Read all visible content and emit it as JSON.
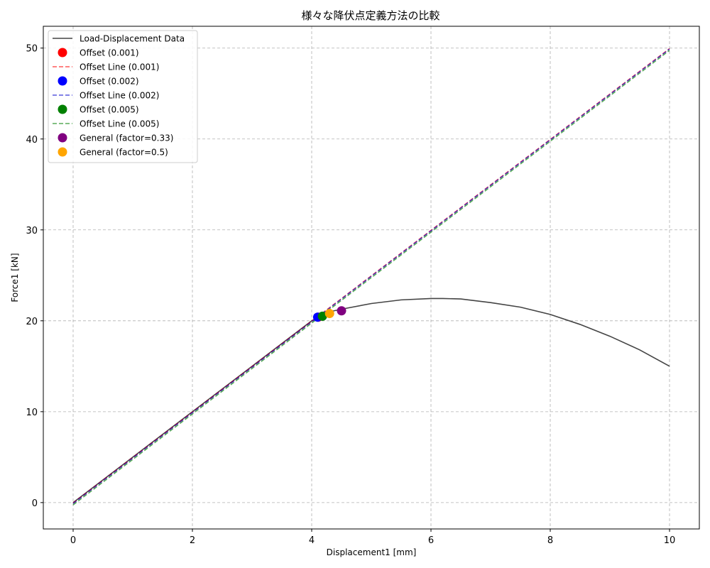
{
  "chart_data": {
    "type": "line",
    "title": "様々な降伏点定義方法の比較",
    "xlabel": "Displacement1 [mm]",
    "ylabel": "Force1 [kN]",
    "xlim": [
      -0.5,
      10.5
    ],
    "ylim": [
      -2.9,
      52.4
    ],
    "xticks": [
      0,
      2,
      4,
      6,
      8,
      10
    ],
    "yticks": [
      0,
      10,
      20,
      30,
      40,
      50
    ],
    "grid": true,
    "legend_position": "top-left",
    "series": [
      {
        "name": "Load-Displacement Data",
        "kind": "line",
        "style": "solid",
        "color": "#444444",
        "x": [
          0,
          1,
          2,
          3,
          4,
          4.3,
          4.6,
          5,
          5.5,
          6,
          6.2,
          6.5,
          7,
          7.5,
          8,
          8.5,
          9,
          9.5,
          10
        ],
        "y": [
          0,
          5,
          10,
          15,
          20,
          21.0,
          21.4,
          21.9,
          22.3,
          22.45,
          22.45,
          22.4,
          22.0,
          21.5,
          20.7,
          19.6,
          18.3,
          16.8,
          15.0
        ]
      },
      {
        "name": "Offset (0.001)",
        "kind": "point",
        "color": "#ff0000",
        "x": [
          4.11
        ],
        "y": [
          20.4
        ]
      },
      {
        "name": "Offset Line (0.001)",
        "kind": "line",
        "style": "dashed",
        "color": "#ff0000",
        "x": [
          0,
          10
        ],
        "y": [
          -0.05,
          49.95
        ]
      },
      {
        "name": "Offset (0.002)",
        "kind": "point",
        "color": "#0000ff",
        "x": [
          4.1
        ],
        "y": [
          20.4
        ]
      },
      {
        "name": "Offset Line (0.002)",
        "kind": "line",
        "style": "dashed",
        "color": "#0000cc",
        "x": [
          0,
          10
        ],
        "y": [
          -0.1,
          49.9
        ]
      },
      {
        "name": "Offset (0.005)",
        "kind": "point",
        "color": "#008000",
        "x": [
          4.18
        ],
        "y": [
          20.5
        ]
      },
      {
        "name": "Offset Line (0.005)",
        "kind": "line",
        "style": "dashed",
        "color": "#008000",
        "x": [
          0,
          10
        ],
        "y": [
          -0.25,
          49.75
        ]
      },
      {
        "name": "General (factor=0.33)",
        "kind": "point",
        "color": "#800080",
        "x": [
          4.5
        ],
        "y": [
          21.1
        ]
      },
      {
        "name": "General (factor=0.5)",
        "kind": "point",
        "color": "#ffa500",
        "x": [
          4.3
        ],
        "y": [
          20.8
        ]
      }
    ]
  }
}
